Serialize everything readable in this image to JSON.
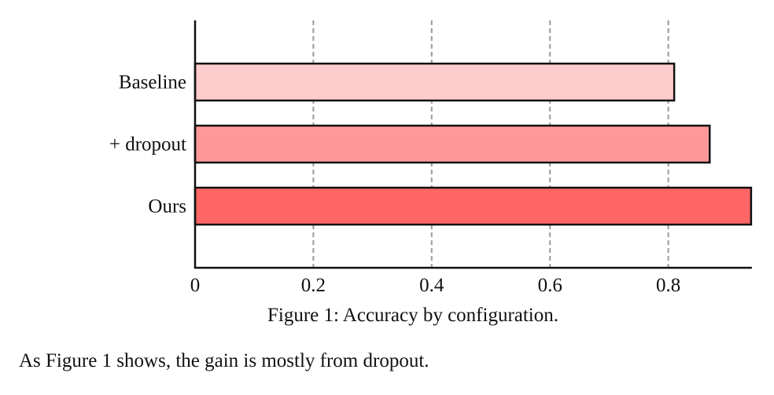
{
  "chart_data": {
    "type": "bar",
    "orientation": "horizontal",
    "categories": [
      "Baseline",
      "+ dropout",
      "Ours"
    ],
    "values": [
      0.81,
      0.87,
      0.94
    ],
    "colors": [
      "#ffcccc",
      "#ff9999",
      "#ff6666"
    ],
    "xticks": [
      "0",
      "0.2",
      "0.4",
      "0.6",
      "0.8"
    ],
    "xlim": [
      0,
      0.94
    ],
    "grid": "vertical dashed",
    "title": "",
    "xlabel": "",
    "ylabel": ""
  },
  "caption": "Figure 1: Accuracy by configuration.",
  "body_text": "As Figure 1 shows, the gain is mostly from dropout."
}
